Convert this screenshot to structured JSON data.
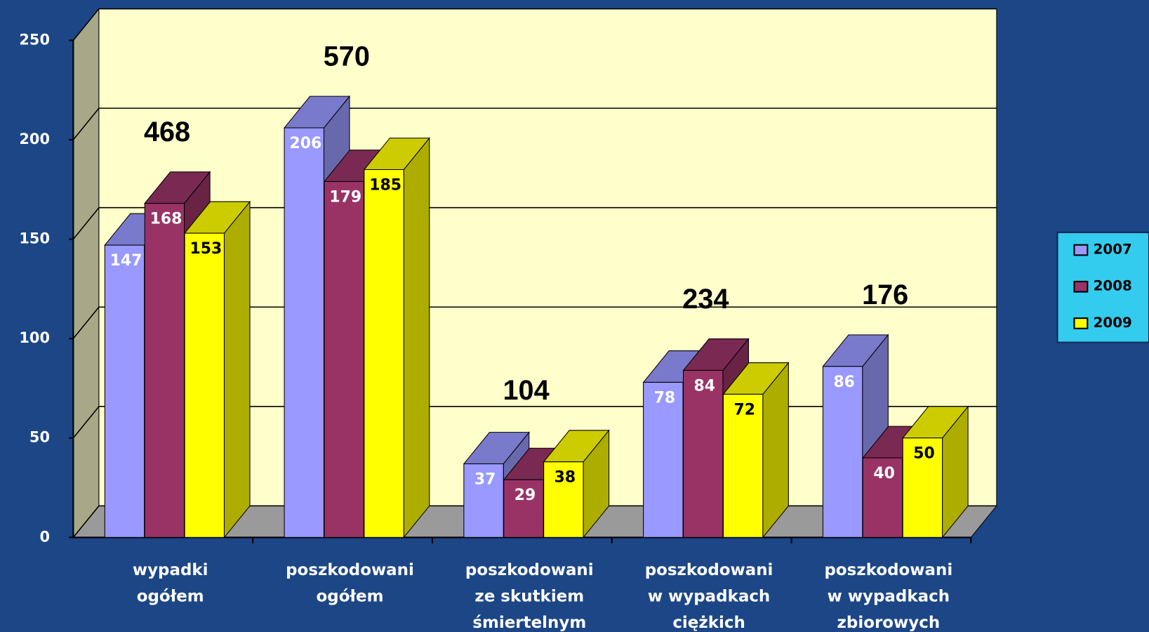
{
  "chart_data": {
    "type": "bar3d",
    "categories": [
      [
        "wypadki",
        "ogółem"
      ],
      [
        "poszkodowani",
        "ogółem"
      ],
      [
        "poszkodowani",
        "ze skutkiem",
        "śmiertelnym"
      ],
      [
        "poszkodowani",
        "w wypadkach",
        "ciężkich"
      ],
      [
        "poszkodowani",
        "w wypadkach",
        "zbiorowych"
      ]
    ],
    "series": [
      {
        "name": "2007",
        "color": "#9999ff",
        "values": [
          147,
          206,
          37,
          78,
          86
        ]
      },
      {
        "name": "2008",
        "color": "#993366",
        "values": [
          168,
          179,
          29,
          84,
          40
        ]
      },
      {
        "name": "2009",
        "color": "#ffff00",
        "values": [
          153,
          185,
          38,
          72,
          50
        ]
      }
    ],
    "totals": [
      468,
      570,
      104,
      234,
      176
    ],
    "ylim": [
      0,
      250
    ],
    "yticks": [
      0,
      50,
      100,
      150,
      200,
      250
    ],
    "grid": true,
    "legend": "right"
  }
}
